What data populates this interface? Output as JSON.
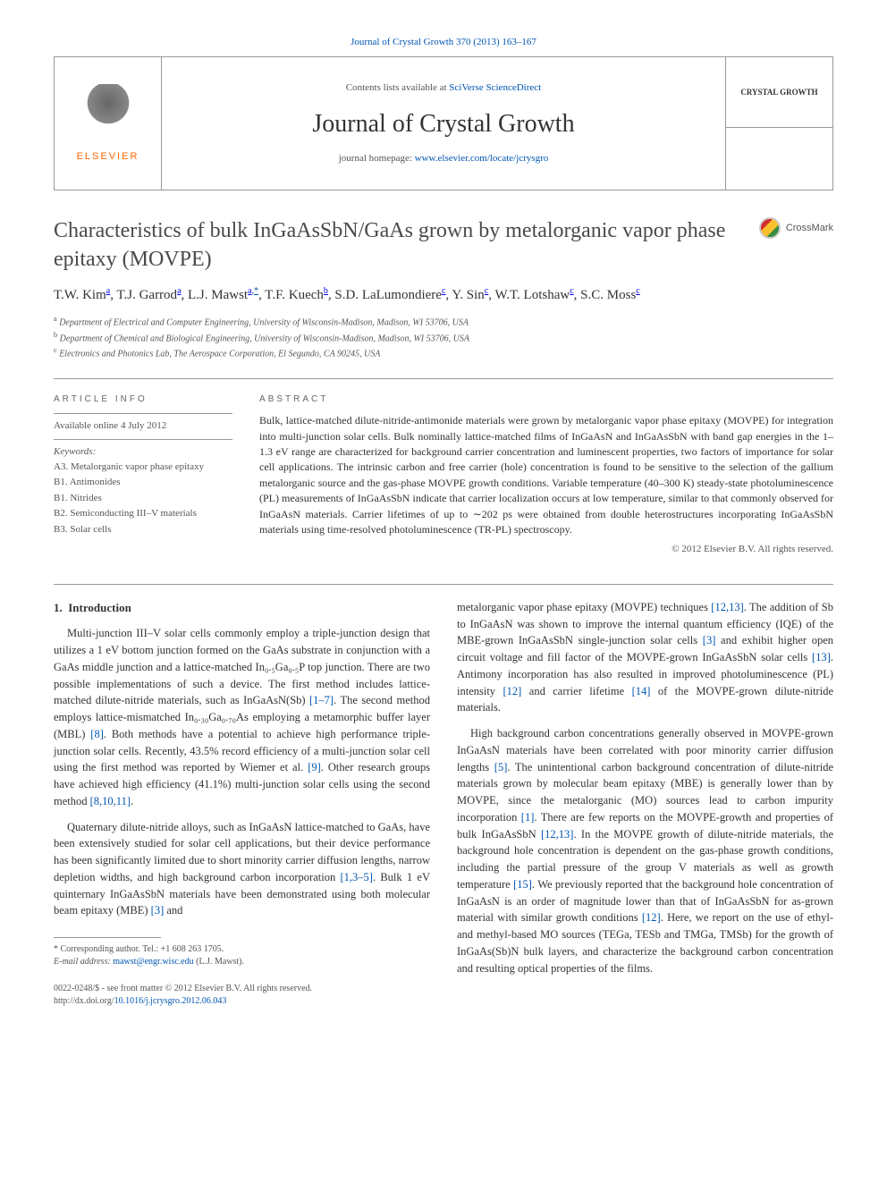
{
  "top_link": {
    "journal": "Journal of Crystal Growth",
    "citation": "370 (2013) 163–167"
  },
  "header": {
    "elsevier": "ELSEVIER",
    "contents_prefix": "Contents lists available at ",
    "contents_link": "SciVerse ScienceDirect",
    "journal_name": "Journal of Crystal Growth",
    "homepage_prefix": "journal homepage: ",
    "homepage_link": "www.elsevier.com/locate/jcrysgro",
    "cover_label": "CRYSTAL GROWTH"
  },
  "crossmark": "CrossMark",
  "title": "Characteristics of bulk InGaAsSbN/GaAs grown by metalorganic vapor phase epitaxy (MOVPE)",
  "authors": [
    {
      "name": "T.W. Kim",
      "sup": "a"
    },
    {
      "name": "T.J. Garrod",
      "sup": "a"
    },
    {
      "name": "L.J. Mawst",
      "sup": "a,*"
    },
    {
      "name": "T.F. Kuech",
      "sup": "b"
    },
    {
      "name": "S.D. LaLumondiere",
      "sup": "c"
    },
    {
      "name": "Y. Sin",
      "sup": "c"
    },
    {
      "name": "W.T. Lotshaw",
      "sup": "c"
    },
    {
      "name": "S.C. Moss",
      "sup": "c"
    }
  ],
  "affiliations": [
    {
      "sup": "a",
      "text": "Department of Electrical and Computer Engineering, University of Wisconsin-Madison, Madison, WI 53706, USA"
    },
    {
      "sup": "b",
      "text": "Department of Chemical and Biological Engineering, University of Wisconsin-Madison, Madison, WI 53706, USA"
    },
    {
      "sup": "c",
      "text": "Electronics and Photonics Lab, The Aerospace Corporation, El Segundo, CA 90245, USA"
    }
  ],
  "info": {
    "heading": "ARTICLE INFO",
    "available": "Available online 4 July 2012",
    "keywords_label": "Keywords:",
    "keywords": [
      "A3. Metalorganic vapor phase epitaxy",
      "B1. Antimonides",
      "B1. Nitrides",
      "B2. Semiconducting III–V materials",
      "B3. Solar cells"
    ]
  },
  "abstract": {
    "heading": "ABSTRACT",
    "text": "Bulk, lattice-matched dilute-nitride-antimonide materials were grown by metalorganic vapor phase epitaxy (MOVPE) for integration into multi-junction solar cells. Bulk nominally lattice-matched films of InGaAsN and InGaAsSbN with band gap energies in the 1–1.3 eV range are characterized for background carrier concentration and luminescent properties, two factors of importance for solar cell applications. The intrinsic carbon and free carrier (hole) concentration is found to be sensitive to the selection of the gallium metalorganic source and the gas-phase MOVPE growth conditions. Variable temperature (40–300 K) steady-state photoluminescence (PL) measurements of InGaAsSbN indicate that carrier localization occurs at low temperature, similar to that commonly observed for InGaAsN materials. Carrier lifetimes of up to ∼202 ps were obtained from double heterostructures incorporating InGaAsSbN materials using time-resolved photoluminescence (TR-PL) spectroscopy.",
    "copyright": "© 2012 Elsevier B.V. All rights reserved."
  },
  "body": {
    "section_number": "1.",
    "section_title": "Introduction",
    "p1_a": "Multi-junction III–V solar cells commonly employ a triple-junction design that utilizes a 1 eV bottom junction formed on the GaAs substrate in conjunction with a GaAs middle junction and a lattice-matched In₀.₅Ga₀.₅P top junction. There are two possible implementations of such a device. The first method includes lattice-matched dilute-nitride materials, such as InGaAsN(Sb) ",
    "ref1": "[1–7]",
    "p1_b": ". The second method employs lattice-mismatched In₀.₃₀Ga₀.₇₀As employing a metamorphic buffer layer (MBL) ",
    "ref2": "[8]",
    "p1_c": ". Both methods have a potential to achieve high performance triple-junction solar cells. Recently, 43.5% record efficiency of a multi-junction solar cell using the first method was reported by Wiemer et al. ",
    "ref3": "[9]",
    "p1_d": ". Other research groups have achieved high efficiency (41.1%) multi-junction solar cells using the second method ",
    "ref4": "[8,10,11]",
    "p1_e": ".",
    "p2_a": "Quaternary dilute-nitride alloys, such as InGaAsN lattice-matched to GaAs, have been extensively studied for solar cell applications, but their device performance has been significantly limited due to short minority carrier diffusion lengths, narrow depletion widths, and high background carbon incorporation ",
    "ref5": "[1,3–5]",
    "p2_b": ". Bulk 1 eV quinternary InGaAsSbN materials have been demonstrated using both molecular beam epitaxy (MBE) ",
    "ref6": "[3]",
    "p2_c": " and ",
    "p3_a": "metalorganic vapor phase epitaxy (MOVPE) techniques ",
    "ref7": "[12,13]",
    "p3_b": ". The addition of Sb to InGaAsN was shown to improve the internal quantum efficiency (IQE) of the MBE-grown InGaAsSbN single-junction solar cells ",
    "ref8": "[3]",
    "p3_c": " and exhibit higher open circuit voltage and fill factor of the MOVPE-grown InGaAsSbN solar cells ",
    "ref9": "[13]",
    "p3_d": ". Antimony incorporation has also resulted in improved photoluminescence (PL) intensity ",
    "ref10": "[12]",
    "p3_e": " and carrier lifetime ",
    "ref11": "[14]",
    "p3_f": " of the MOVPE-grown dilute-nitride materials.",
    "p4_a": "High background carbon concentrations generally observed in MOVPE-grown InGaAsN materials have been correlated with poor minority carrier diffusion lengths ",
    "ref12": "[5]",
    "p4_b": ". The unintentional carbon background concentration of dilute-nitride materials grown by molecular beam epitaxy (MBE) is generally lower than by MOVPE, since the metalorganic (MO) sources lead to carbon impurity incorporation ",
    "ref13": "[1]",
    "p4_c": ". There are few reports on the MOVPE-growth and properties of bulk InGaAsSbN ",
    "ref14": "[12,13]",
    "p4_d": ". In the MOVPE growth of dilute-nitride materials, the background hole concentration is dependent on the gas-phase growth conditions, including the partial pressure of the group V materials as well as growth temperature ",
    "ref15": "[15]",
    "p4_e": ". We previously reported that the background hole concentration of InGaAsN is an order of magnitude lower than that of InGaAsSbN for as-grown material with similar growth conditions ",
    "ref16": "[12]",
    "p4_f": ". Here, we report on the use of ethyl- and methyl-based MO sources (TEGa, TESb and TMGa, TMSb) for the growth of InGaAs(Sb)N bulk layers, and characterize the background carbon concentration and resulting optical properties of the films."
  },
  "footnote": {
    "corr": "* Corresponding author. Tel.: +1 608 263 1705.",
    "email_label": "E-mail address: ",
    "email": "mawst@engr.wisc.edu",
    "email_name": " (L.J. Mawst)."
  },
  "bottom": {
    "line1": "0022-0248/$ - see front matter © 2012 Elsevier B.V. All rights reserved.",
    "doi_label": "http://dx.doi.org/",
    "doi": "10.1016/j.jcrysgro.2012.06.043"
  }
}
